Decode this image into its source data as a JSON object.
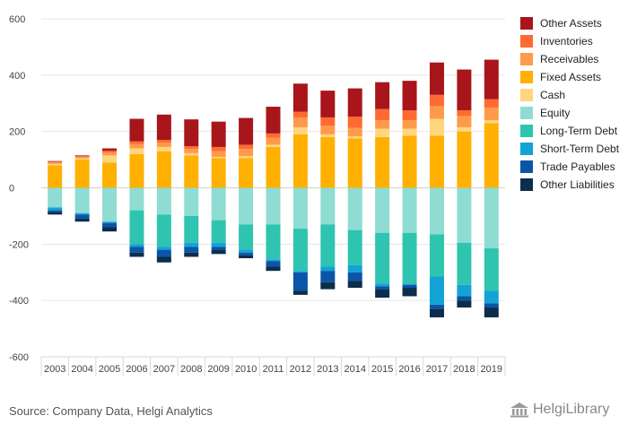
{
  "chart_data": {
    "type": "bar",
    "stacked": true,
    "categories": [
      "2003",
      "2004",
      "2005",
      "2006",
      "2007",
      "2008",
      "2009",
      "2010",
      "2011",
      "2012",
      "2013",
      "2014",
      "2015",
      "2016",
      "2017",
      "2018",
      "2019"
    ],
    "yticks": [
      "600",
      "400",
      "200",
      "0",
      "-200",
      "-400",
      "-600"
    ],
    "ylim": [
      -600,
      600
    ],
    "grid": true,
    "legend_position": "right",
    "assets": [
      {
        "name": "Fixed Assets",
        "color": "#ffb000",
        "values": [
          80,
          100,
          90,
          120,
          130,
          115,
          105,
          105,
          145,
          190,
          180,
          175,
          180,
          185,
          185,
          200,
          230
        ]
      },
      {
        "name": "Cash",
        "color": "#ffd580",
        "values": [
          5,
          5,
          25,
          20,
          15,
          8,
          5,
          8,
          8,
          25,
          10,
          8,
          30,
          25,
          60,
          15,
          10
        ]
      },
      {
        "name": "Receivables",
        "color": "#ff9a4a",
        "values": [
          5,
          5,
          10,
          15,
          15,
          15,
          20,
          25,
          25,
          35,
          30,
          30,
          30,
          30,
          45,
          40,
          45
        ]
      },
      {
        "name": "Inventories",
        "color": "#ff6a33",
        "values": [
          3,
          3,
          7,
          10,
          10,
          10,
          15,
          15,
          15,
          20,
          30,
          40,
          40,
          35,
          40,
          20,
          30
        ]
      },
      {
        "name": "Other Assets",
        "color": "#a8161b",
        "values": [
          2,
          2,
          8,
          80,
          90,
          95,
          90,
          95,
          95,
          100,
          95,
          100,
          95,
          105,
          115,
          145,
          140
        ]
      }
    ],
    "liabilities": [
      {
        "name": "Equity",
        "color": "#8fdcd2",
        "values": [
          -70,
          -90,
          -120,
          -80,
          -95,
          -100,
          -115,
          -130,
          -130,
          -145,
          -130,
          -150,
          -160,
          -160,
          -165,
          -195,
          -215
        ]
      },
      {
        "name": "Long-Term Debt",
        "color": "#2ec4b0",
        "values": [
          0,
          0,
          0,
          -120,
          -115,
          -95,
          -80,
          -90,
          -125,
          -150,
          -150,
          -125,
          -180,
          -180,
          -150,
          -150,
          -150
        ]
      },
      {
        "name": "Short-Term Debt",
        "color": "#14a3d5",
        "values": [
          -10,
          -5,
          -5,
          -10,
          -10,
          -15,
          -15,
          -10,
          -5,
          -5,
          -15,
          -25,
          -10,
          -5,
          -100,
          -40,
          -45
        ]
      },
      {
        "name": "Trade Payables",
        "color": "#0a55a8",
        "values": [
          -5,
          -15,
          -15,
          -20,
          -25,
          -20,
          -10,
          -10,
          -20,
          -65,
          -40,
          -30,
          -10,
          -10,
          -15,
          -15,
          -15
        ]
      },
      {
        "name": "Other Liabilities",
        "color": "#0d2d4c",
        "values": [
          -10,
          -10,
          -15,
          -15,
          -20,
          -15,
          -15,
          -10,
          -15,
          -15,
          -25,
          -25,
          -30,
          -30,
          -30,
          -25,
          -35
        ]
      }
    ],
    "legend_order": [
      "Other Assets",
      "Inventories",
      "Receivables",
      "Fixed Assets",
      "Cash",
      "Equity",
      "Long-Term Debt",
      "Short-Term Debt",
      "Trade Payables",
      "Other Liabilities"
    ]
  },
  "footer": {
    "source": "Source: Company Data, Helgi Analytics",
    "logo": "HelgiLibrary"
  }
}
